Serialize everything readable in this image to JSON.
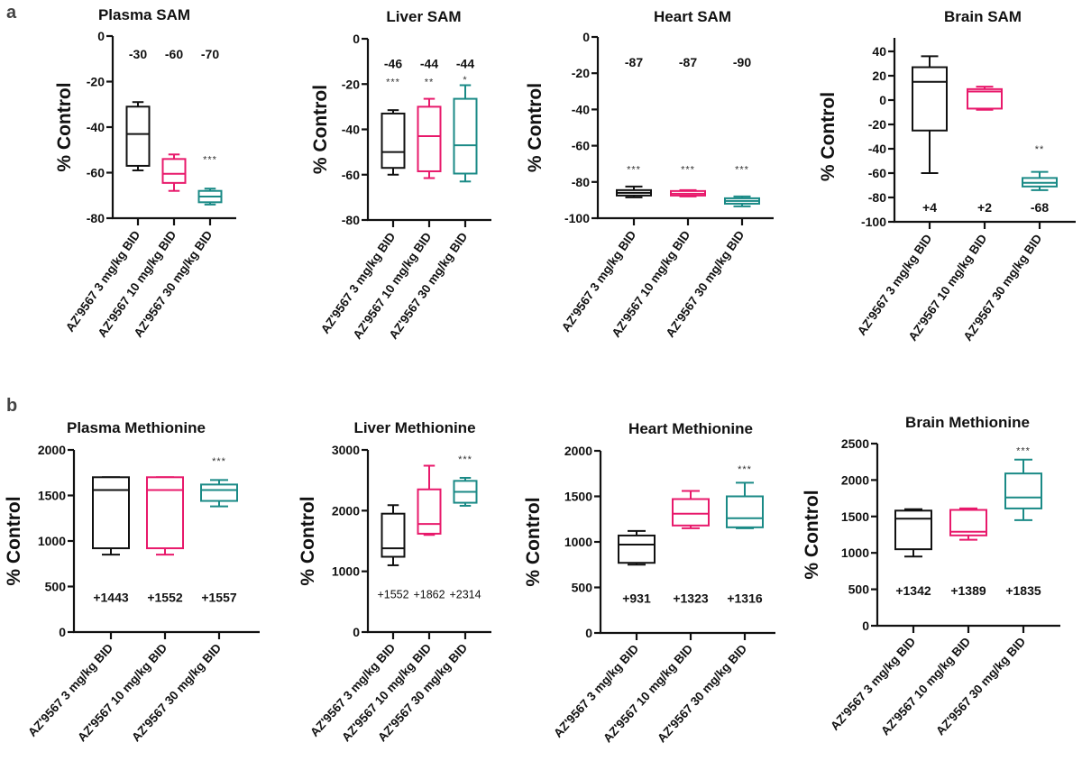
{
  "figure": {
    "panel_letters": [
      "a",
      "b"
    ],
    "group_colors": [
      "#111111",
      "#e8196b",
      "#1a8a86"
    ]
  },
  "chart_data": [
    {
      "type": "box",
      "row": "a",
      "title": "Plasma SAM",
      "ylabel": "% Control",
      "ylim": [
        -80,
        0
      ],
      "yticks": [
        0,
        -20,
        -40,
        -60,
        -80
      ],
      "categories": [
        "AZ'9567 3 mg/kg BID",
        "AZ'9567 10 mg/kg BID",
        "AZ'9567 30 mg/kg BID"
      ],
      "boxes": [
        {
          "min": -59,
          "q1": -57,
          "median": -43,
          "q3": -31,
          "max": -29
        },
        {
          "min": -68,
          "q1": -64.5,
          "median": -60.5,
          "q3": -54,
          "max": -52
        },
        {
          "min": -74,
          "q1": -73,
          "median": -70.5,
          "q3": -68,
          "max": -67
        }
      ],
      "annotations": [
        "-30",
        "-60",
        "-70"
      ],
      "annotation_y": -8,
      "annotation_style": "bold",
      "significance": [
        {
          "index": 2,
          "label": "***",
          "y": -54
        }
      ]
    },
    {
      "type": "box",
      "row": "a",
      "title": "Liver SAM",
      "ylabel": "% Control",
      "ylim": [
        -80,
        0
      ],
      "yticks": [
        0,
        -20,
        -40,
        -60,
        -80
      ],
      "categories": [
        "AZ'9567 3 mg/kg BID",
        "AZ'9567 10 mg/kg BID",
        "AZ'9567 30 mg/kg BID"
      ],
      "boxes": [
        {
          "min": -60,
          "q1": -57,
          "median": -50,
          "q3": -33,
          "max": -31.5
        },
        {
          "min": -61.5,
          "q1": -58.5,
          "median": -43,
          "q3": -30,
          "max": -26.5
        },
        {
          "min": -63,
          "q1": -59.5,
          "median": -47,
          "q3": -26.5,
          "max": -20.5
        }
      ],
      "annotations": [
        "-46",
        "-44",
        "-44"
      ],
      "annotation_y": -11,
      "annotation_style": "bold",
      "significance": [
        {
          "index": 0,
          "label": "***",
          "y": -19
        },
        {
          "index": 1,
          "label": "**",
          "y": -19
        },
        {
          "index": 2,
          "label": "*",
          "y": -18
        }
      ]
    },
    {
      "type": "box",
      "row": "a",
      "title": "Heart SAM",
      "ylabel": "% Control",
      "ylim": [
        -100,
        0
      ],
      "yticks": [
        0,
        -20,
        -40,
        -60,
        -80,
        -100
      ],
      "categories": [
        "AZ'9567 3 mg/kg BID",
        "AZ'9567 10 mg/kg BID",
        "AZ'9567 30 mg/kg BID"
      ],
      "boxes": [
        {
          "min": -88.5,
          "q1": -87.5,
          "median": -86,
          "q3": -84.5,
          "max": -82.5
        },
        {
          "min": -88,
          "q1": -87.5,
          "median": -86.5,
          "q3": -85,
          "max": -84.5
        },
        {
          "min": -93.5,
          "q1": -92,
          "median": -90.5,
          "q3": -89,
          "max": -88
        }
      ],
      "annotations": [
        "-87",
        "-87",
        "-90"
      ],
      "annotation_y": -14,
      "annotation_style": "bold",
      "significance": [
        {
          "index": 0,
          "label": "***",
          "y": -73
        },
        {
          "index": 1,
          "label": "***",
          "y": -73
        },
        {
          "index": 2,
          "label": "***",
          "y": -73
        }
      ]
    },
    {
      "type": "box",
      "row": "a",
      "title": "Brain SAM",
      "ylabel": "% Control",
      "ylim": [
        -100,
        50
      ],
      "yticks": [
        40,
        20,
        0,
        -20,
        -40,
        -60,
        -80,
        -100
      ],
      "categories": [
        "AZ'9567 3 mg/kg BID",
        "AZ'9567 10 mg/kg BID",
        "AZ'9567 30 mg/kg BID"
      ],
      "boxes": [
        {
          "min": -60,
          "q1": -25,
          "median": 15,
          "q3": 27,
          "max": 36
        },
        {
          "min": -8,
          "q1": -7,
          "median": 7,
          "q3": 9,
          "max": 11
        },
        {
          "min": -74,
          "q1": -71,
          "median": -68,
          "q3": -64,
          "max": -59
        }
      ],
      "annotations": [
        "+4",
        "+2",
        "-68"
      ],
      "annotation_y": -88,
      "annotation_style": "bold",
      "significance": [
        {
          "index": 2,
          "label": "**",
          "y": -40
        }
      ]
    },
    {
      "type": "box",
      "row": "b",
      "title": "Plasma Methionine",
      "ylabel": "% Control",
      "ylim": [
        0,
        2000
      ],
      "yticks": [
        0,
        500,
        1000,
        1500,
        2000
      ],
      "categories": [
        "AZ'9567 3 mg/kg BID",
        "AZ'9567 10 mg/kg BID",
        "AZ'9567 30 mg/kg BID"
      ],
      "boxes": [
        {
          "min": 850,
          "q1": 920,
          "median": 1560,
          "q3": 1700,
          "max": 1700
        },
        {
          "min": 850,
          "q1": 920,
          "median": 1560,
          "q3": 1700,
          "max": 1700
        },
        {
          "min": 1380,
          "q1": 1440,
          "median": 1560,
          "q3": 1620,
          "max": 1670
        }
      ],
      "annotations": [
        "+1443",
        "+1552",
        "+1557"
      ],
      "annotation_y": 380,
      "annotation_style": "bold",
      "significance": [
        {
          "index": 2,
          "label": "***",
          "y": 1880
        }
      ]
    },
    {
      "type": "box",
      "row": "b",
      "title": "Liver Methionine",
      "ylabel": "% Control",
      "ylim": [
        0,
        3000
      ],
      "yticks": [
        0,
        1000,
        2000,
        3000
      ],
      "categories": [
        "AZ'9567 3 mg/kg BID",
        "AZ'9567 10 mg/kg BID",
        "AZ'9567 30 mg/kg BID"
      ],
      "boxes": [
        {
          "min": 1100,
          "q1": 1240,
          "median": 1380,
          "q3": 1950,
          "max": 2090
        },
        {
          "min": 1600,
          "q1": 1620,
          "median": 1780,
          "q3": 2350,
          "max": 2740
        },
        {
          "min": 2080,
          "q1": 2130,
          "median": 2310,
          "q3": 2490,
          "max": 2540
        }
      ],
      "annotations": [
        "+1552",
        "+1862",
        "+2314"
      ],
      "annotation_y": 630,
      "annotation_style": "normal",
      "significance": [
        {
          "index": 2,
          "label": "***",
          "y": 2850
        }
      ]
    },
    {
      "type": "box",
      "row": "b",
      "title": "Heart Methionine",
      "ylabel": "% Control",
      "ylim": [
        0,
        2000
      ],
      "yticks": [
        0,
        500,
        1000,
        1500,
        2000
      ],
      "categories": [
        "AZ'9567 3 mg/kg BID",
        "AZ'9567 10 mg/kg BID",
        "AZ'9567 30 mg/kg BID"
      ],
      "boxes": [
        {
          "min": 750,
          "q1": 770,
          "median": 970,
          "q3": 1070,
          "max": 1120
        },
        {
          "min": 1150,
          "q1": 1180,
          "median": 1310,
          "q3": 1470,
          "max": 1560
        },
        {
          "min": 1150,
          "q1": 1160,
          "median": 1260,
          "q3": 1500,
          "max": 1650
        }
      ],
      "annotations": [
        "+931",
        "+1323",
        "+1316"
      ],
      "annotation_y": 380,
      "annotation_style": "bold",
      "significance": [
        {
          "index": 2,
          "label": "***",
          "y": 1800
        }
      ]
    },
    {
      "type": "box",
      "row": "b",
      "title": "Brain Methionine",
      "ylabel": "% Control",
      "ylim": [
        0,
        2500
      ],
      "yticks": [
        0,
        500,
        1000,
        1500,
        2000,
        2500
      ],
      "categories": [
        "AZ'9567 3 mg/kg BID",
        "AZ'9567 10 mg/kg BID",
        "AZ'9567 30 mg/kg BID"
      ],
      "boxes": [
        {
          "min": 950,
          "q1": 1050,
          "median": 1470,
          "q3": 1580,
          "max": 1600
        },
        {
          "min": 1180,
          "q1": 1240,
          "median": 1290,
          "q3": 1590,
          "max": 1610
        },
        {
          "min": 1450,
          "q1": 1610,
          "median": 1760,
          "q3": 2090,
          "max": 2280
        }
      ],
      "annotations": [
        "+1342",
        "+1389",
        "+1835"
      ],
      "annotation_y": 480,
      "annotation_style": "bold",
      "significance": [
        {
          "index": 2,
          "label": "***",
          "y": 2410
        }
      ]
    }
  ]
}
